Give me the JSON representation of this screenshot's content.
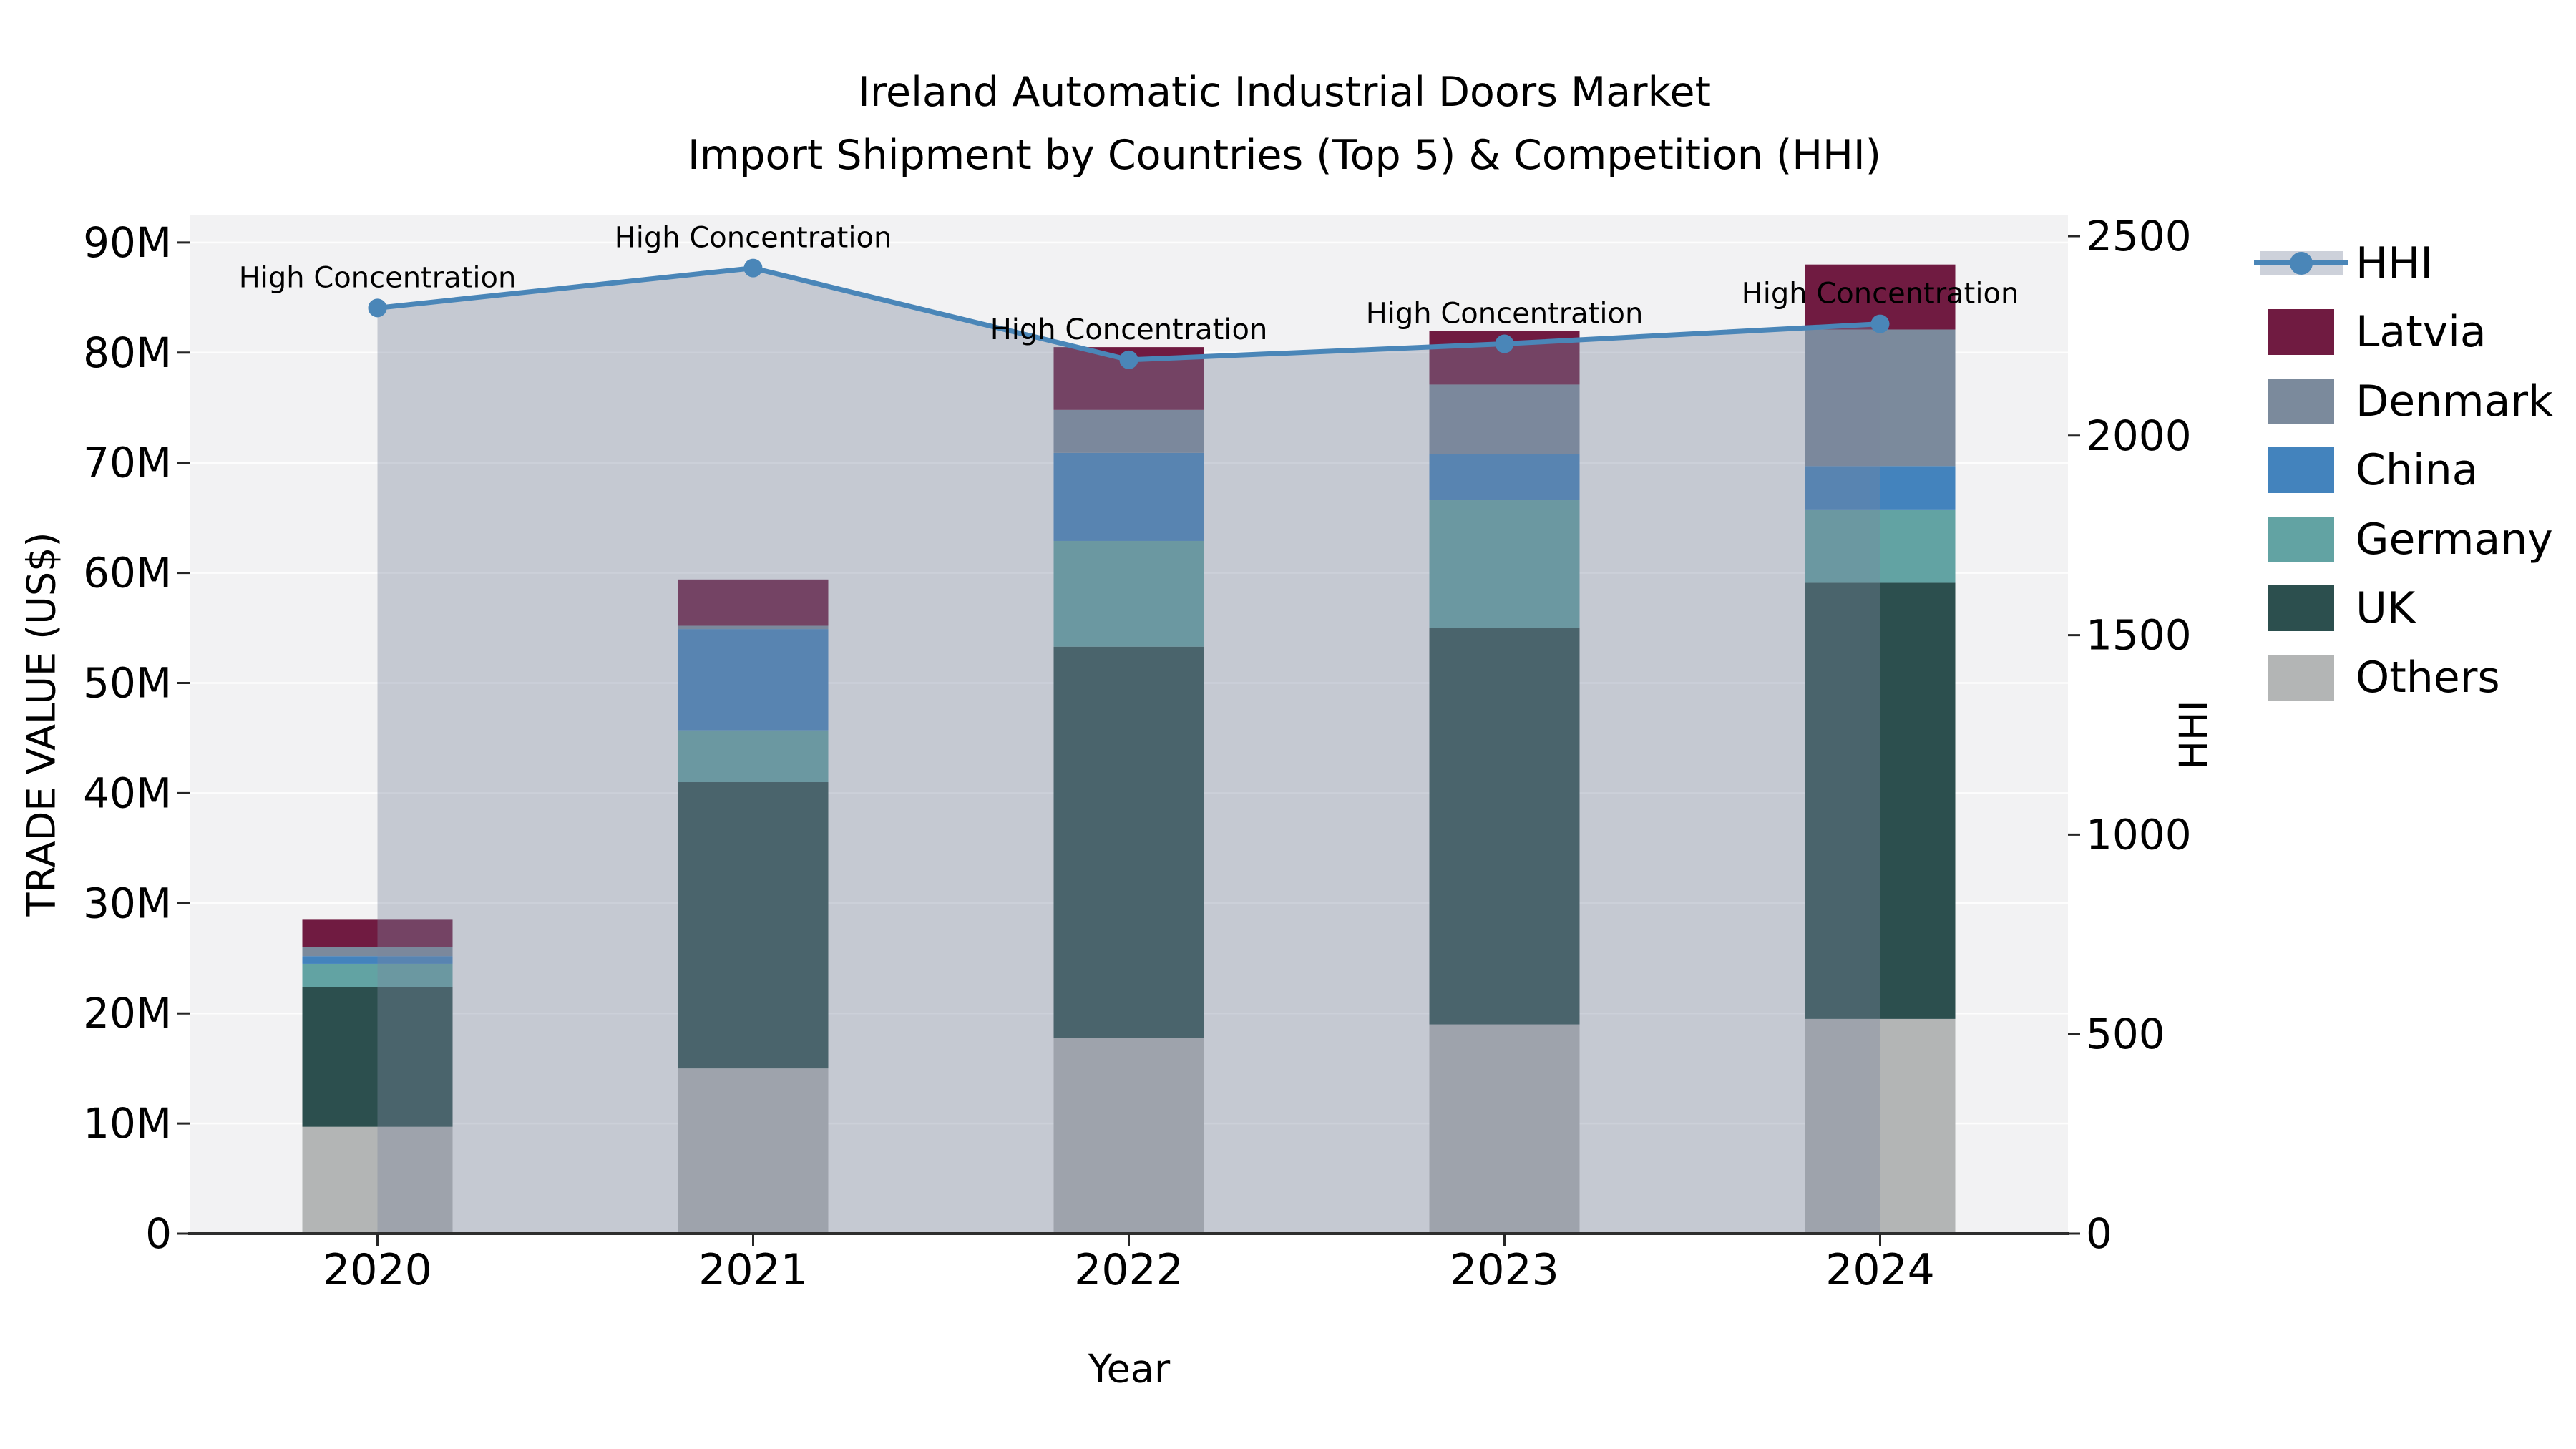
{
  "title": {
    "line1": "Ireland Automatic Industrial Doors Market",
    "line2": "Import Shipment by Countries (Top 5) & Competition (HHI)"
  },
  "axes": {
    "x_label": "Year",
    "y_left_label": "TRADE VALUE (US$)",
    "y_right_label": "HHI",
    "x_ticks": [
      "2020",
      "2021",
      "2022",
      "2023",
      "2024"
    ],
    "y_left_ticks": [
      "0",
      "10M",
      "20M",
      "30M",
      "40M",
      "50M",
      "60M",
      "70M",
      "80M",
      "90M"
    ],
    "y_right_ticks": [
      "0",
      "500",
      "1000",
      "1500",
      "2000",
      "2500"
    ]
  },
  "legend": {
    "position": "right",
    "items": [
      {
        "label": "HHI",
        "type": "line",
        "color": "#4a86b8"
      },
      {
        "label": "Latvia",
        "type": "swatch",
        "color": "#701b41"
      },
      {
        "label": "Denmark",
        "type": "swatch",
        "color": "#7b8a9c"
      },
      {
        "label": "China",
        "type": "swatch",
        "color": "#4383bd"
      },
      {
        "label": "Germany",
        "type": "swatch",
        "color": "#62a3a3"
      },
      {
        "label": "UK",
        "type": "swatch",
        "color": "#2c4f4e"
      },
      {
        "label": "Others",
        "type": "swatch",
        "color": "#b3b5b5"
      }
    ]
  },
  "chart_data": {
    "type": "combo-stacked-bar-and-line",
    "title": "Ireland Automatic Industrial Doors Market — Import Shipment by Countries (Top 5) & Competition (HHI)",
    "xlabel": "Year",
    "ylabel_left": "TRADE VALUE (US$)",
    "ylabel_right": "HHI",
    "categories": [
      2020,
      2021,
      2022,
      2023,
      2024
    ],
    "y_left_range_musd": [
      0,
      90
    ],
    "y_right_range": [
      0,
      2500
    ],
    "grid": true,
    "stack_order_bottom_to_top": [
      "Others",
      "UK",
      "Germany",
      "China",
      "Denmark",
      "Latvia"
    ],
    "series": [
      {
        "name": "Others",
        "color": "#b3b5b5",
        "values_musd": [
          9.7,
          15.0,
          17.8,
          19.0,
          19.5
        ]
      },
      {
        "name": "UK",
        "color": "#2c4f4e",
        "values_musd": [
          12.7,
          26.0,
          35.5,
          36.0,
          39.6
        ]
      },
      {
        "name": "Germany",
        "color": "#62a3a3",
        "values_musd": [
          2.1,
          4.7,
          9.6,
          11.6,
          6.6
        ]
      },
      {
        "name": "China",
        "color": "#4383bd",
        "values_musd": [
          0.7,
          9.2,
          8.0,
          4.2,
          4.0
        ]
      },
      {
        "name": "Denmark",
        "color": "#7b8a9c",
        "values_musd": [
          0.8,
          0.3,
          3.9,
          6.3,
          12.4
        ]
      },
      {
        "name": "Latvia",
        "color": "#701b41",
        "values_musd": [
          2.5,
          4.2,
          5.7,
          4.9,
          5.9
        ]
      }
    ],
    "bar_totals_musd": [
      28.5,
      59.4,
      80.5,
      82.0,
      88.0
    ],
    "line_series": {
      "name": "HHI",
      "color": "#4a86b8",
      "area_fill": "rgba(124,134,158,0.38)",
      "values": [
        2320,
        2420,
        2190,
        2230,
        2280
      ]
    },
    "annotations": {
      "text": "High Concentration",
      "at_categories": [
        2020,
        2021,
        2022,
        2023,
        2024
      ]
    }
  },
  "colors": {
    "figure_bg": "#ffffff",
    "plot_bg": "#f2f2f3",
    "gridline": "#ffffff",
    "axis_line": "#2e2e2e",
    "tick": "#262626",
    "text": "#000000",
    "hhi_line": "#4a86b8",
    "area_overlay": "rgba(124,134,158,0.38)"
  }
}
